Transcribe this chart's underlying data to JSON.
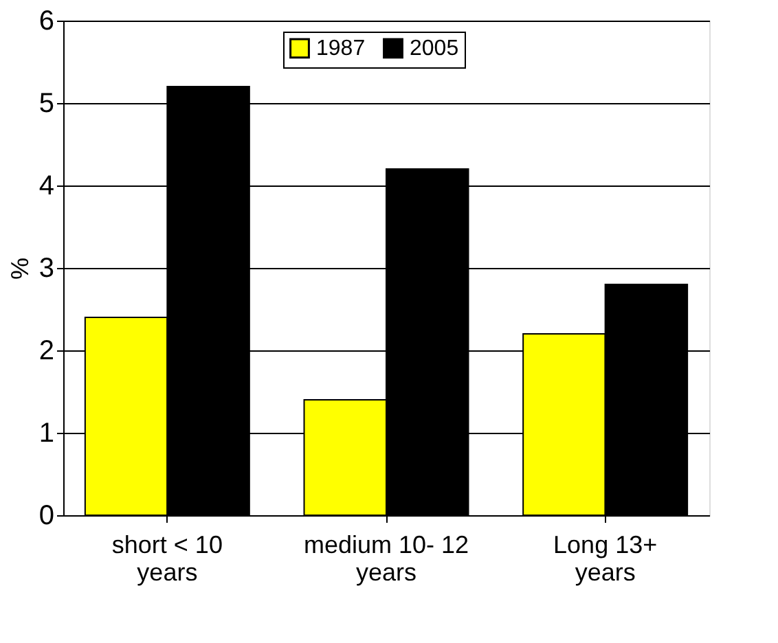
{
  "chart_data": {
    "type": "bar",
    "ylabel": "%",
    "categories": [
      "short  < 10 years",
      "medium 10- 12 years",
      "Long 13+ years"
    ],
    "series": [
      {
        "name": "1987",
        "color": "#ffff00",
        "values": [
          2.4,
          1.4,
          2.2
        ]
      },
      {
        "name": "2005",
        "color": "#000000",
        "values": [
          5.2,
          4.2,
          2.8
        ]
      }
    ],
    "ylim": [
      0,
      6
    ],
    "yticks": [
      0,
      1,
      2,
      3,
      4,
      5,
      6
    ],
    "grid": "y",
    "legend": "top"
  }
}
